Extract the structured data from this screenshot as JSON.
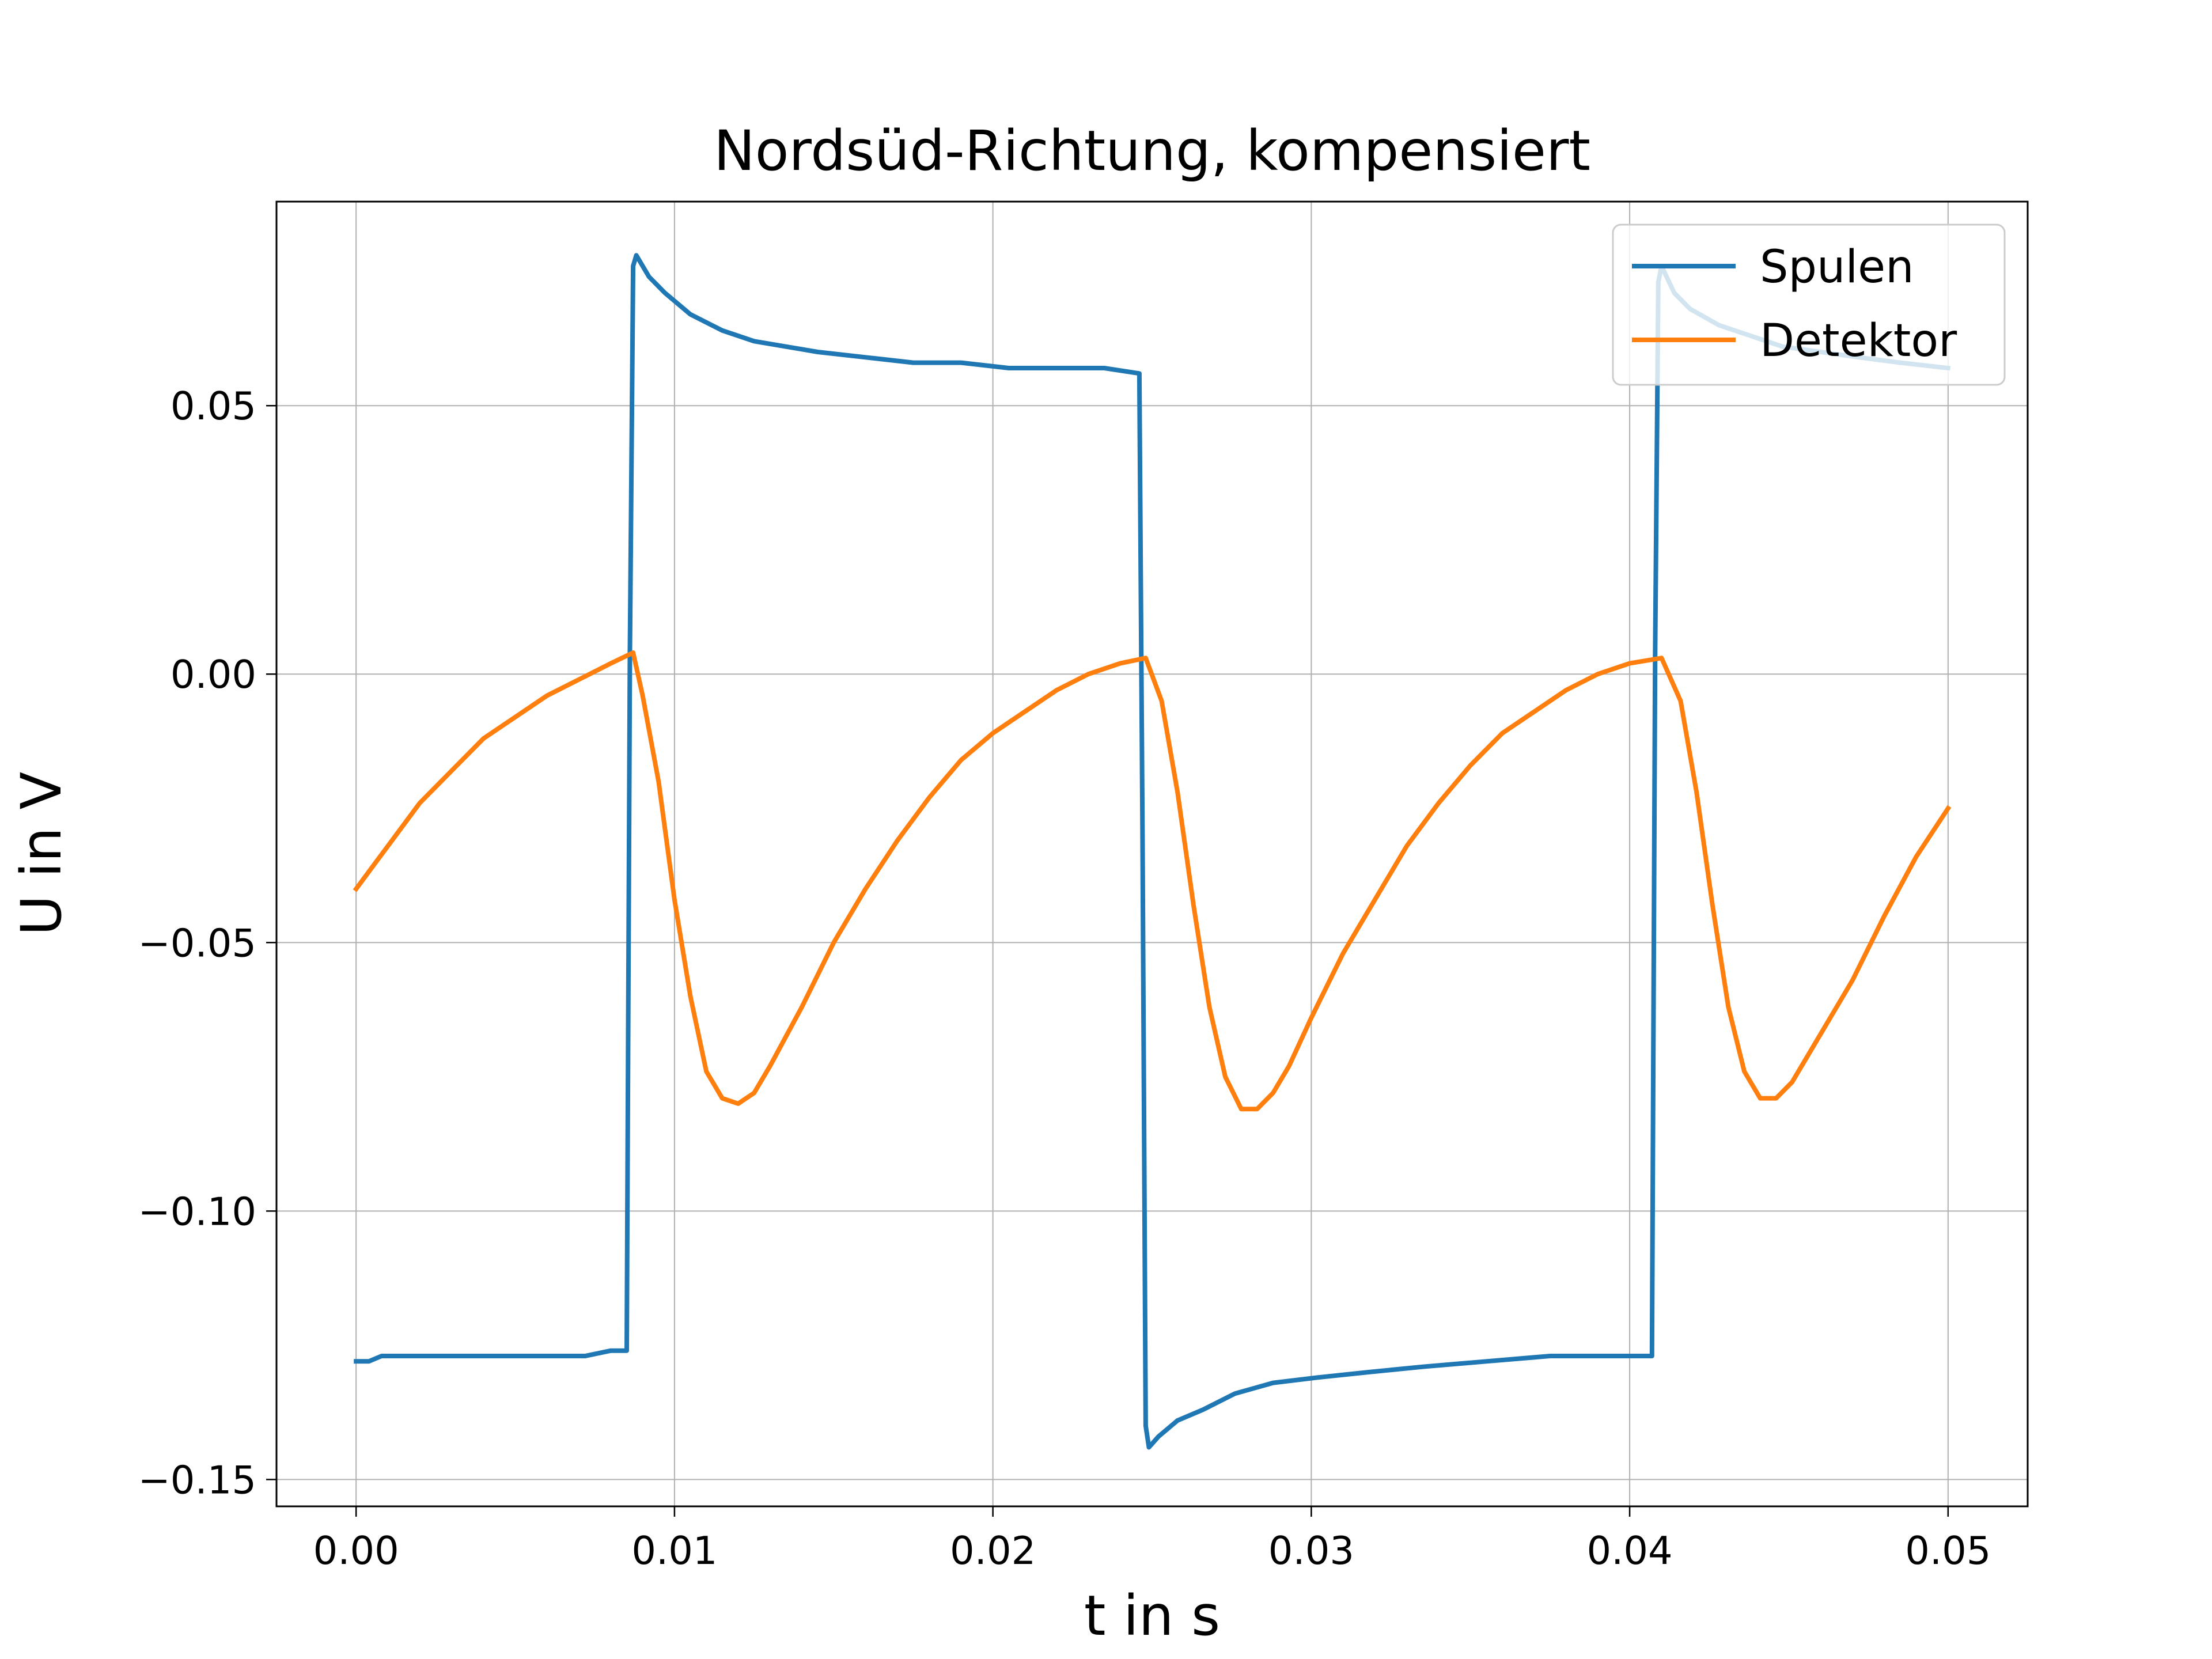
{
  "chart_data": {
    "type": "line",
    "title": "Nordsüd-Richtung, kompensiert",
    "xlabel": "t in s",
    "ylabel": "U in V",
    "xlim": [
      -0.0025,
      0.0525
    ],
    "ylim": [
      -0.155,
      0.088
    ],
    "x_ticks": [
      0.0,
      0.01,
      0.02,
      0.03,
      0.04,
      0.05
    ],
    "x_tick_labels": [
      "0.00",
      "0.01",
      "0.02",
      "0.03",
      "0.04",
      "0.05"
    ],
    "y_ticks": [
      0.05,
      0.0,
      -0.05,
      -0.1,
      -0.15
    ],
    "y_tick_labels": [
      "0.05",
      "0.00",
      "−0.05",
      "−0.10",
      "−0.15"
    ],
    "grid": true,
    "legend_position": "upper right",
    "series": [
      {
        "name": "Spulen",
        "color": "#1f77b4",
        "x": [
          0.0,
          0.0004,
          0.0008,
          0.0016,
          0.0024,
          0.0032,
          0.004,
          0.0048,
          0.0056,
          0.0064,
          0.0072,
          0.008,
          0.0085,
          0.0086,
          0.0087,
          0.0088,
          0.0092,
          0.0097,
          0.0105,
          0.0115,
          0.0125,
          0.0135,
          0.0145,
          0.016,
          0.0175,
          0.019,
          0.0205,
          0.022,
          0.0235,
          0.0246,
          0.0247,
          0.0248,
          0.0249,
          0.0252,
          0.0258,
          0.0266,
          0.0276,
          0.0288,
          0.0302,
          0.0318,
          0.0335,
          0.0355,
          0.0375,
          0.0395,
          0.0407,
          0.0408,
          0.0409,
          0.041,
          0.0414,
          0.0419,
          0.0428,
          0.0438,
          0.0448,
          0.046,
          0.0472,
          0.0485,
          0.05
        ],
        "values": [
          -0.128,
          -0.128,
          -0.127,
          -0.127,
          -0.127,
          -0.127,
          -0.127,
          -0.127,
          -0.127,
          -0.127,
          -0.127,
          -0.126,
          -0.126,
          0.004,
          0.076,
          0.078,
          0.074,
          0.071,
          0.067,
          0.064,
          0.062,
          0.061,
          0.06,
          0.059,
          0.058,
          0.058,
          0.057,
          0.057,
          0.057,
          0.056,
          -0.03,
          -0.14,
          -0.144,
          -0.142,
          -0.139,
          -0.137,
          -0.134,
          -0.132,
          -0.131,
          -0.13,
          -0.129,
          -0.128,
          -0.127,
          -0.127,
          -0.127,
          0.004,
          0.073,
          0.076,
          0.071,
          0.068,
          0.065,
          0.063,
          0.061,
          0.06,
          0.059,
          0.058,
          0.057
        ]
      },
      {
        "name": "Detektor",
        "color": "#ff7f0e",
        "x": [
          0.0,
          0.0005,
          0.001,
          0.0015,
          0.002,
          0.003,
          0.004,
          0.005,
          0.006,
          0.007,
          0.008,
          0.0087,
          0.009,
          0.0095,
          0.01,
          0.0105,
          0.011,
          0.0115,
          0.012,
          0.0125,
          0.013,
          0.014,
          0.015,
          0.016,
          0.017,
          0.018,
          0.019,
          0.02,
          0.021,
          0.022,
          0.023,
          0.024,
          0.0248,
          0.0253,
          0.0258,
          0.0263,
          0.0268,
          0.0273,
          0.0278,
          0.0283,
          0.0288,
          0.0293,
          0.03,
          0.031,
          0.032,
          0.033,
          0.034,
          0.035,
          0.036,
          0.037,
          0.038,
          0.039,
          0.04,
          0.041,
          0.0416,
          0.0421,
          0.0426,
          0.0431,
          0.0436,
          0.0441,
          0.0446,
          0.0451,
          0.046,
          0.047,
          0.048,
          0.049,
          0.05
        ],
        "values": [
          -0.04,
          -0.036,
          -0.032,
          -0.028,
          -0.024,
          -0.018,
          -0.012,
          -0.008,
          -0.004,
          -0.001,
          0.002,
          0.004,
          -0.004,
          -0.02,
          -0.042,
          -0.06,
          -0.074,
          -0.079,
          -0.08,
          -0.078,
          -0.073,
          -0.062,
          -0.05,
          -0.04,
          -0.031,
          -0.023,
          -0.016,
          -0.011,
          -0.007,
          -0.003,
          0.0,
          0.002,
          0.003,
          -0.005,
          -0.022,
          -0.043,
          -0.062,
          -0.075,
          -0.081,
          -0.081,
          -0.078,
          -0.073,
          -0.064,
          -0.052,
          -0.042,
          -0.032,
          -0.024,
          -0.017,
          -0.011,
          -0.007,
          -0.003,
          0.0,
          0.002,
          0.003,
          -0.005,
          -0.022,
          -0.043,
          -0.062,
          -0.074,
          -0.079,
          -0.079,
          -0.076,
          -0.067,
          -0.057,
          -0.045,
          -0.034,
          -0.025
        ]
      }
    ]
  }
}
